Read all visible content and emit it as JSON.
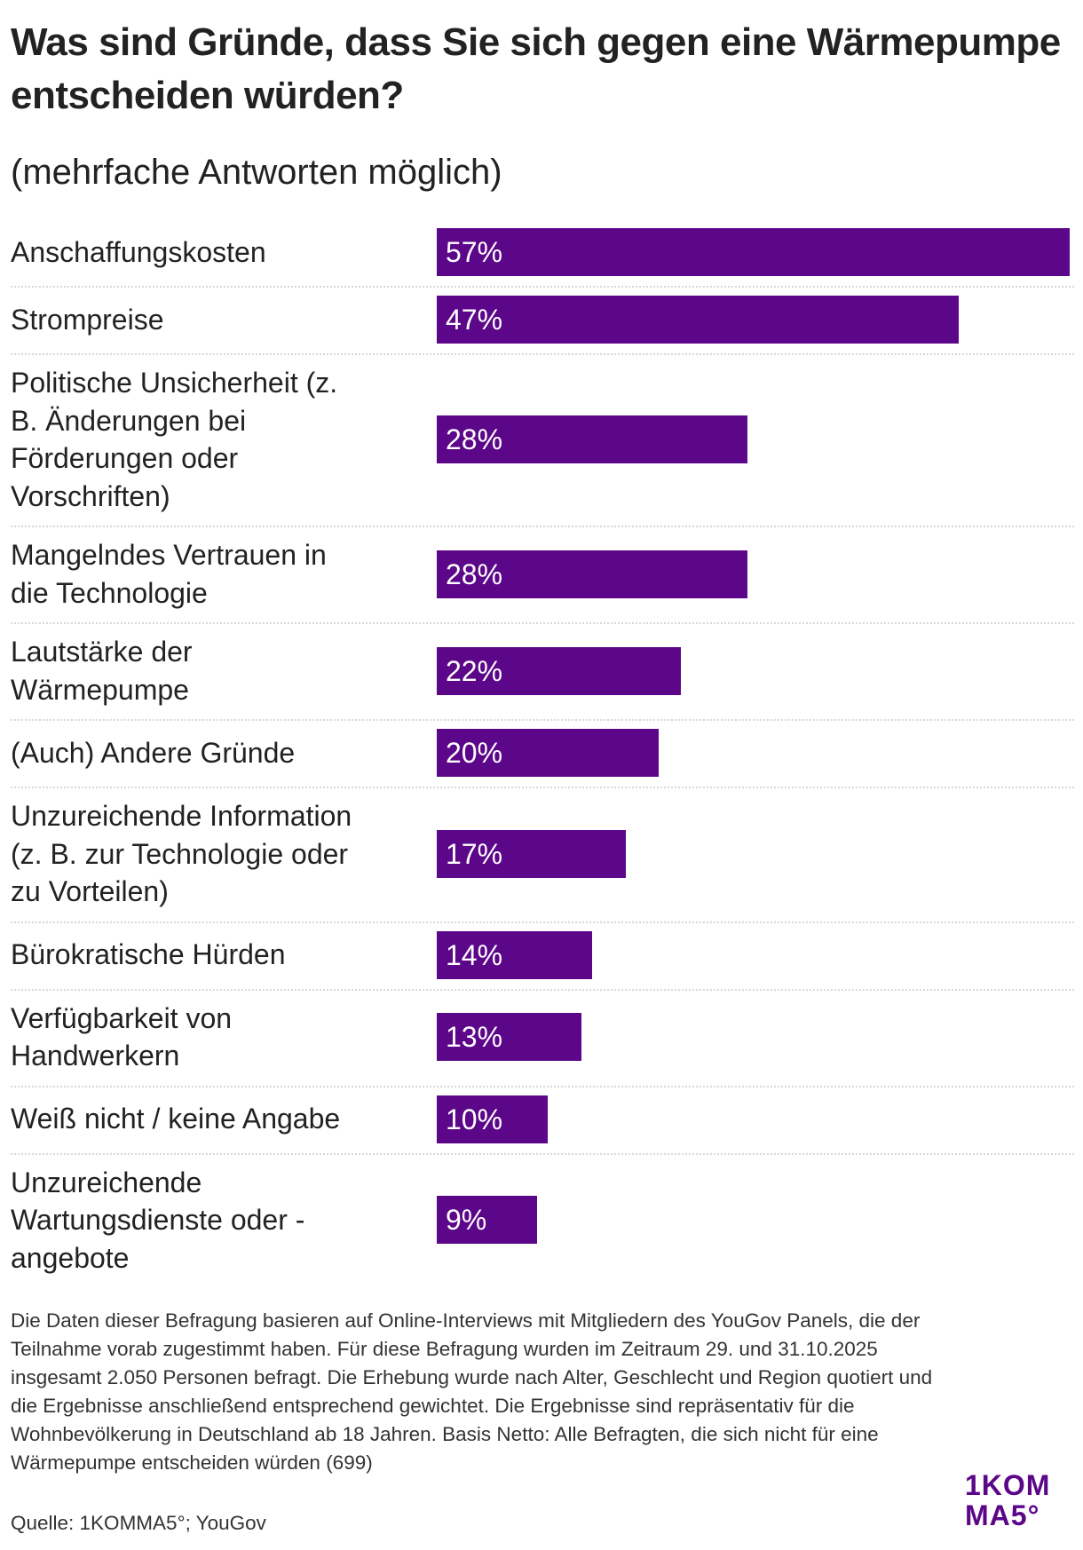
{
  "header": {
    "title": "Was sind Gründe, dass Sie sich gegen eine Wärmepumpe entscheiden würden?",
    "subtitle": "(mehrfache Antworten möglich)"
  },
  "colors": {
    "bar": "#5c0689",
    "text": "#222222",
    "bar_text": "#ffffff",
    "logo": "#5c0689",
    "divider": "#d8d8d8"
  },
  "chart_data": {
    "type": "bar",
    "orientation": "horizontal",
    "title": "Was sind Gründe, dass Sie sich gegen eine Wärmepumpe entscheiden würden?",
    "subtitle": "(mehrfache Antworten möglich)",
    "xlabel": "",
    "ylabel": "",
    "unit": "%",
    "xlim": [
      0,
      57
    ],
    "grid": false,
    "legend": "none",
    "categories": [
      "Anschaffungskosten",
      "Strompreise",
      "Politische Unsicherheit (z. B. Änderungen bei Förderungen oder Vorschriften)",
      "Mangelndes Vertrauen in die Technologie",
      "Lautstärke der Wärmepumpe",
      "(Auch) Andere Gründe",
      "Unzureichende Information (z. B. zur Technologie oder zu Vorteilen)",
      "Bürokratische Hürden",
      "Verfügbarkeit von Handwerkern",
      "Weiß nicht / keine Angabe",
      "Unzureichende Wartungsdienste oder -angebote"
    ],
    "values": [
      57,
      47,
      28,
      28,
      22,
      20,
      17,
      14,
      13,
      10,
      9
    ],
    "value_labels": [
      "57%",
      "47%",
      "28%",
      "28%",
      "22%",
      "20%",
      "17%",
      "14%",
      "13%",
      "10%",
      "9%"
    ],
    "label_lines": [
      [
        "Anschaffungskosten"
      ],
      [
        "Strompreise"
      ],
      [
        "Politische Unsicherheit (z.",
        "B. Änderungen bei",
        "Förderungen oder",
        "Vorschriften)"
      ],
      [
        "Mangelndes Vertrauen in",
        "die Technologie"
      ],
      [
        "Lautstärke der",
        "Wärmepumpe"
      ],
      [
        "(Auch) Andere Gründe"
      ],
      [
        "Unzureichende Information",
        "(z. B. zur Technologie oder",
        "zu Vorteilen)"
      ],
      [
        "Bürokratische Hürden"
      ],
      [
        "Verfügbarkeit von",
        "Handwerkern"
      ],
      [
        "Weiß nicht / keine Angabe"
      ],
      [
        "Unzureichende",
        "Wartungsdienste oder -",
        "angebote"
      ]
    ]
  },
  "footer": {
    "note": "Die Daten dieser Befragung basieren auf Online-Interviews mit Mitgliedern des YouGov Panels, die der Teilnahme vorab zugestimmt haben. Für diese Befragung wurden im Zeitraum 29. und 31.10.2025 insgesamt 2.050 Personen befragt. Die Erhebung wurde nach Alter, Geschlecht und Region quotiert und die Ergebnisse anschließend entsprechend gewichtet. Die Ergebnisse sind repräsentativ für die Wohnbevölkerung in Deutschland ab 18 Jahren. Basis Netto: Alle Befragten, die sich nicht für eine Wärmepumpe entscheiden würden (699)",
    "source": "Quelle: 1KOMMA5°; YouGov",
    "logo_line1": "1KOM",
    "logo_line2": "MA5°"
  }
}
